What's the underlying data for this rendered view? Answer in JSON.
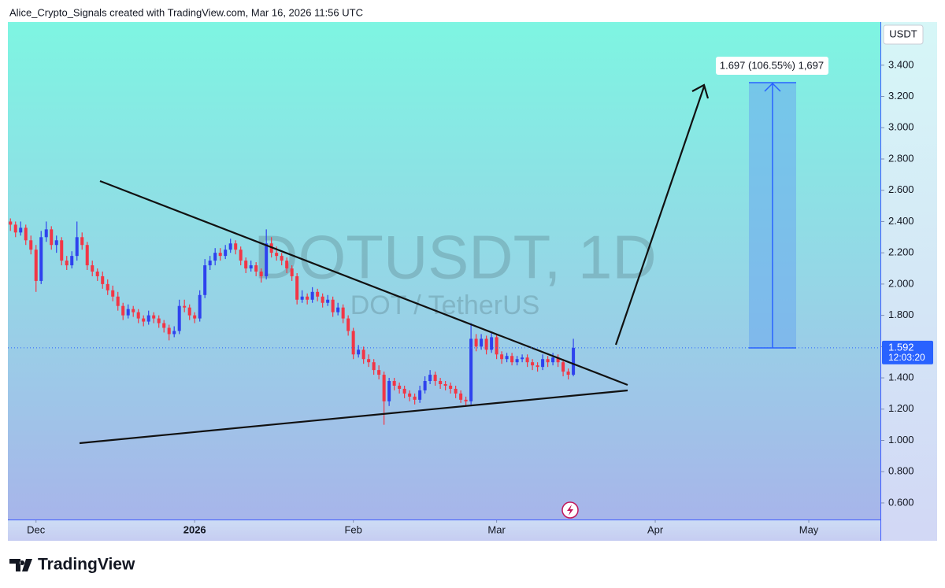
{
  "header": "Alice_Crypto_Signals created with TradingView.com, Mar 16, 2026 11:56 UTC",
  "footer": "TradingView",
  "chart_data": {
    "type": "candlestick",
    "title": "DOTUSDT, 1D",
    "subtitle": "DOT / TetherUS",
    "currency": "USDT",
    "countdown": "12:03:20",
    "measure_label": "1.697 (106.55%) 1,697",
    "up_color": "#2e42ee",
    "down_color": "#f23645",
    "xlim": [
      -0.5,
      170
    ],
    "xticks": [
      {
        "value": 5,
        "label": "Dec"
      },
      {
        "value": 36,
        "label": "2026"
      },
      {
        "value": 67,
        "label": "Feb"
      },
      {
        "value": 95,
        "label": "Mar"
      },
      {
        "value": 126,
        "label": "Apr"
      },
      {
        "value": 156,
        "label": "May"
      }
    ],
    "ylim": [
      0.494,
      3.676
    ],
    "yticks": [
      {
        "value": 0.6,
        "label": "0.600"
      },
      {
        "value": 0.8,
        "label": "0.800"
      },
      {
        "value": 1,
        "label": "1.000"
      },
      {
        "value": 1.2,
        "label": "1.200"
      },
      {
        "value": 1.4,
        "label": "1.400"
      },
      {
        "value": 1.6,
        "label": "1.600"
      },
      {
        "value": 1.8,
        "label": "1.800"
      },
      {
        "value": 2,
        "label": "2.000"
      },
      {
        "value": 2.2,
        "label": "2.200"
      },
      {
        "value": 2.4,
        "label": "2.400"
      },
      {
        "value": 2.6,
        "label": "2.600"
      },
      {
        "value": 2.8,
        "label": "2.800"
      },
      {
        "value": 3,
        "label": "3.000"
      },
      {
        "value": 3.2,
        "label": "3.200"
      },
      {
        "value": 3.4,
        "label": "3.400"
      }
    ],
    "values": [
      [
        2.4,
        2.42,
        2.34,
        2.38
      ],
      [
        2.38,
        2.4,
        2.3,
        2.33
      ],
      [
        2.33,
        2.4,
        2.31,
        2.36
      ],
      [
        2.36,
        2.38,
        2.25,
        2.28
      ],
      [
        2.28,
        2.31,
        2.19,
        2.22
      ],
      [
        2.22,
        2.25,
        1.95,
        2.02
      ],
      [
        2.02,
        2.34,
        2.0,
        2.3
      ],
      [
        2.3,
        2.4,
        2.27,
        2.35
      ],
      [
        2.35,
        2.37,
        2.22,
        2.25
      ],
      [
        2.25,
        2.31,
        2.2,
        2.28
      ],
      [
        2.28,
        2.3,
        2.12,
        2.15
      ],
      [
        2.15,
        2.18,
        2.09,
        2.12
      ],
      [
        2.12,
        2.21,
        2.1,
        2.18
      ],
      [
        2.18,
        2.4,
        2.15,
        2.3
      ],
      [
        2.3,
        2.33,
        2.22,
        2.25
      ],
      [
        2.25,
        2.27,
        2.09,
        2.12
      ],
      [
        2.12,
        2.15,
        2.05,
        2.08
      ],
      [
        2.08,
        2.1,
        2.02,
        2.05
      ],
      [
        2.05,
        2.08,
        1.97,
        2.0
      ],
      [
        2.0,
        2.03,
        1.93,
        1.96
      ],
      [
        1.96,
        1.99,
        1.89,
        1.92
      ],
      [
        1.92,
        1.95,
        1.83,
        1.86
      ],
      [
        1.86,
        1.88,
        1.77,
        1.8
      ],
      [
        1.8,
        1.87,
        1.78,
        1.84
      ],
      [
        1.84,
        1.86,
        1.79,
        1.82
      ],
      [
        1.82,
        1.84,
        1.75,
        1.78
      ],
      [
        1.78,
        1.8,
        1.73,
        1.76
      ],
      [
        1.76,
        1.83,
        1.74,
        1.8
      ],
      [
        1.8,
        1.82,
        1.75,
        1.78
      ],
      [
        1.78,
        1.8,
        1.72,
        1.75
      ],
      [
        1.75,
        1.77,
        1.69,
        1.72
      ],
      [
        1.72,
        1.74,
        1.64,
        1.68
      ],
      [
        1.68,
        1.73,
        1.66,
        1.7
      ],
      [
        1.7,
        1.9,
        1.68,
        1.86
      ],
      [
        1.86,
        1.9,
        1.82,
        1.85
      ],
      [
        1.85,
        1.87,
        1.77,
        1.8
      ],
      [
        1.8,
        1.82,
        1.75,
        1.78
      ],
      [
        1.78,
        1.96,
        1.76,
        1.93
      ],
      [
        1.93,
        2.16,
        1.91,
        2.12
      ],
      [
        2.12,
        2.18,
        2.09,
        2.15
      ],
      [
        2.15,
        2.23,
        2.12,
        2.2
      ],
      [
        2.2,
        2.23,
        2.15,
        2.18
      ],
      [
        2.18,
        2.25,
        2.16,
        2.22
      ],
      [
        2.22,
        2.29,
        2.2,
        2.26
      ],
      [
        2.26,
        2.28,
        2.19,
        2.22
      ],
      [
        2.22,
        2.24,
        2.12,
        2.15
      ],
      [
        2.15,
        2.17,
        2.07,
        2.1
      ],
      [
        2.1,
        2.15,
        2.08,
        2.12
      ],
      [
        2.12,
        2.14,
        2.05,
        2.08
      ],
      [
        2.08,
        2.1,
        2.01,
        2.05
      ],
      [
        2.05,
        2.35,
        2.03,
        2.26
      ],
      [
        2.26,
        2.3,
        2.17,
        2.2
      ],
      [
        2.2,
        2.24,
        2.15,
        2.18
      ],
      [
        2.18,
        2.2,
        2.12,
        2.15
      ],
      [
        2.15,
        2.17,
        2.07,
        2.1
      ],
      [
        2.1,
        2.12,
        2.02,
        2.05
      ],
      [
        2.05,
        2.07,
        1.87,
        1.9
      ],
      [
        1.9,
        1.96,
        1.88,
        1.92
      ],
      [
        1.92,
        1.94,
        1.87,
        1.9
      ],
      [
        1.9,
        1.98,
        1.88,
        1.95
      ],
      [
        1.95,
        1.97,
        1.89,
        1.92
      ],
      [
        1.92,
        1.94,
        1.85,
        1.88
      ],
      [
        1.88,
        1.93,
        1.86,
        1.9
      ],
      [
        1.9,
        1.92,
        1.79,
        1.82
      ],
      [
        1.82,
        1.88,
        1.8,
        1.85
      ],
      [
        1.85,
        1.87,
        1.75,
        1.78
      ],
      [
        1.78,
        1.8,
        1.67,
        1.7
      ],
      [
        1.7,
        1.72,
        1.52,
        1.55
      ],
      [
        1.55,
        1.61,
        1.53,
        1.58
      ],
      [
        1.58,
        1.6,
        1.49,
        1.52
      ],
      [
        1.52,
        1.55,
        1.47,
        1.5
      ],
      [
        1.5,
        1.52,
        1.42,
        1.45
      ],
      [
        1.45,
        1.48,
        1.39,
        1.42
      ],
      [
        1.42,
        1.44,
        1.1,
        1.25
      ],
      [
        1.25,
        1.4,
        1.22,
        1.38
      ],
      [
        1.38,
        1.4,
        1.32,
        1.35
      ],
      [
        1.35,
        1.37,
        1.3,
        1.33
      ],
      [
        1.33,
        1.35,
        1.27,
        1.3
      ],
      [
        1.3,
        1.32,
        1.25,
        1.28
      ],
      [
        1.28,
        1.3,
        1.23,
        1.26
      ],
      [
        1.26,
        1.35,
        1.24,
        1.32
      ],
      [
        1.32,
        1.41,
        1.3,
        1.38
      ],
      [
        1.38,
        1.45,
        1.36,
        1.42
      ],
      [
        1.42,
        1.44,
        1.35,
        1.38
      ],
      [
        1.38,
        1.4,
        1.33,
        1.36
      ],
      [
        1.36,
        1.38,
        1.32,
        1.35
      ],
      [
        1.35,
        1.37,
        1.3,
        1.33
      ],
      [
        1.33,
        1.35,
        1.27,
        1.3
      ],
      [
        1.3,
        1.32,
        1.24,
        1.26
      ],
      [
        1.26,
        1.28,
        1.22,
        1.25
      ],
      [
        1.25,
        1.75,
        1.23,
        1.65
      ],
      [
        1.65,
        1.68,
        1.57,
        1.6
      ],
      [
        1.6,
        1.68,
        1.58,
        1.65
      ],
      [
        1.65,
        1.67,
        1.55,
        1.58
      ],
      [
        1.58,
        1.69,
        1.56,
        1.66
      ],
      [
        1.66,
        1.68,
        1.52,
        1.55
      ],
      [
        1.55,
        1.57,
        1.49,
        1.52
      ],
      [
        1.52,
        1.56,
        1.5,
        1.54
      ],
      [
        1.54,
        1.56,
        1.48,
        1.5
      ],
      [
        1.5,
        1.54,
        1.48,
        1.52
      ],
      [
        1.52,
        1.55,
        1.5,
        1.53
      ],
      [
        1.53,
        1.55,
        1.47,
        1.5
      ],
      [
        1.5,
        1.52,
        1.45,
        1.48
      ],
      [
        1.48,
        1.5,
        1.44,
        1.47
      ],
      [
        1.47,
        1.55,
        1.45,
        1.52
      ],
      [
        1.52,
        1.54,
        1.47,
        1.5
      ],
      [
        1.5,
        1.56,
        1.48,
        1.53
      ],
      [
        1.53,
        1.55,
        1.47,
        1.5
      ],
      [
        1.5,
        1.52,
        1.41,
        1.44
      ],
      [
        1.44,
        1.46,
        1.39,
        1.42
      ],
      [
        1.42,
        1.65,
        1.41,
        1.592
      ]
    ]
  }
}
